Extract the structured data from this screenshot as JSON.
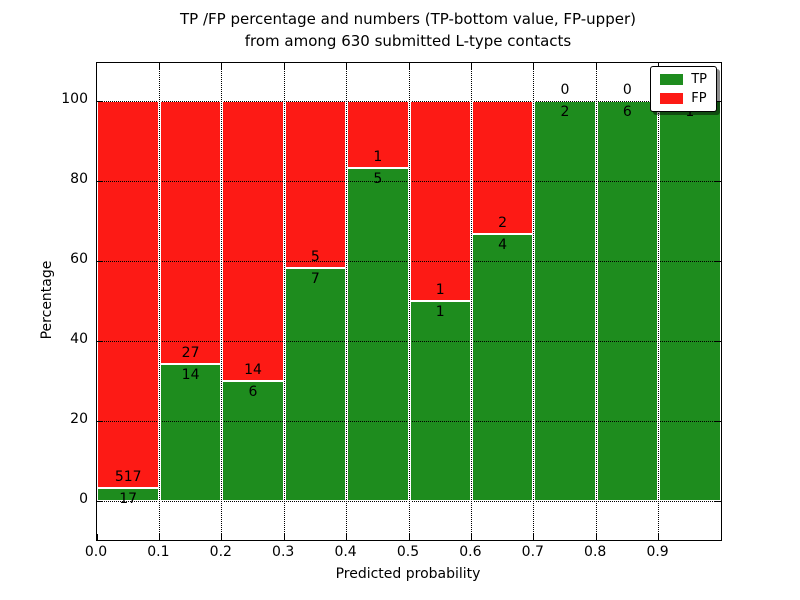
{
  "chart_data": {
    "type": "bar",
    "stacked": true,
    "normalized_to_percent": true,
    "title_line1": "TP /FP percentage and numbers (TP-bottom value, FP-upper)",
    "title_line2": "from among 630 submitted L-type contacts",
    "xlabel": "Predicted probability",
    "ylabel": "Percentage",
    "x_tick_labels": [
      "0.0",
      "0.1",
      "0.2",
      "0.3",
      "0.4",
      "0.5",
      "0.6",
      "0.7",
      "0.8",
      "0.9"
    ],
    "y_tick_labels": [
      "0",
      "20",
      "40",
      "60",
      "80",
      "100"
    ],
    "y_tick_values": [
      0,
      20,
      40,
      60,
      80,
      100
    ],
    "ylim": [
      -10,
      110
    ],
    "grid": "dotted",
    "legend_position": "upper right",
    "bins": [
      "0.0-0.1",
      "0.1-0.2",
      "0.2-0.3",
      "0.3-0.4",
      "0.4-0.5",
      "0.5-0.6",
      "0.6-0.7",
      "0.7-0.8",
      "0.8-0.9",
      "0.9-1.0"
    ],
    "series": [
      {
        "name": "TP",
        "color": "#1e8c1e",
        "values": [
          17,
          14,
          6,
          7,
          5,
          1,
          4,
          2,
          6,
          1
        ]
      },
      {
        "name": "FP",
        "color": "#fd1a15",
        "values": [
          517,
          27,
          14,
          5,
          1,
          1,
          2,
          0,
          0,
          0
        ]
      }
    ],
    "green_percent_of_bar": [
      3.2,
      34.1,
      30.0,
      58.3,
      83.3,
      50.0,
      66.7,
      100.0,
      100.0,
      100.0
    ],
    "total_contacts": 630
  }
}
